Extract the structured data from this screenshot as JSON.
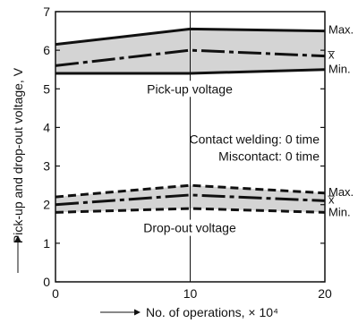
{
  "chart_data": {
    "type": "line",
    "xlabel": "No. of operations, × 10⁴",
    "ylabel": "Pick-up and drop-out voltage, V",
    "x_ticks": [
      0,
      10,
      20
    ],
    "y_ticks": [
      0,
      1,
      2,
      3,
      4,
      5,
      6,
      7
    ],
    "xlim": [
      0,
      20
    ],
    "ylim": [
      0,
      7
    ],
    "x": [
      0,
      10,
      20
    ],
    "groups": [
      {
        "label": "Pick-up voltage",
        "style": "solid",
        "band_color": "#d4d4d4",
        "max": [
          6.15,
          6.55,
          6.5
        ],
        "mean": [
          5.6,
          6.0,
          5.85
        ],
        "min": [
          5.4,
          5.4,
          5.5
        ]
      },
      {
        "label": "Drop-out voltage",
        "style": "dashed",
        "band_color": "#d4d4d4",
        "max": [
          2.2,
          2.5,
          2.3
        ],
        "mean": [
          2.0,
          2.25,
          2.1
        ],
        "min": [
          1.8,
          1.9,
          1.8
        ]
      }
    ],
    "series_labels": {
      "max": "Max.",
      "mean": "x̅",
      "min": "Min."
    },
    "annotations": [
      "Contact welding: 0 time",
      "Miscontact: 0 time"
    ],
    "grid": "vertical line at x = 10"
  }
}
